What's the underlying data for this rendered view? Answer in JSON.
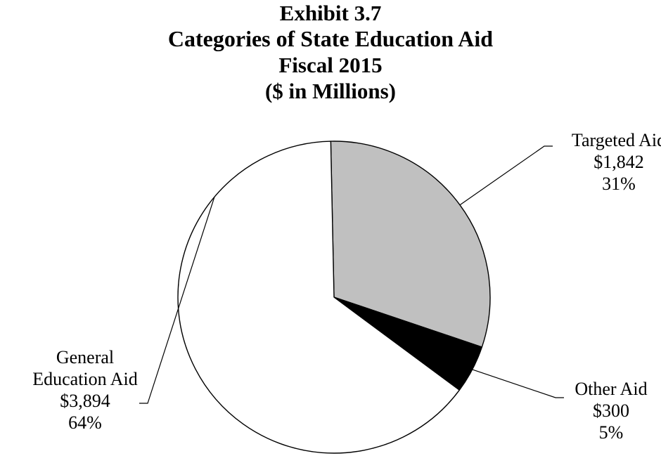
{
  "chart_data": {
    "type": "pie",
    "title": [
      "Exhibit 3.7",
      "Categories of State Education Aid",
      "Fiscal 2015",
      "($ in Millions)"
    ],
    "slices": [
      {
        "name": "Targeted Aid",
        "label_lines": [
          "Targeted Aid"
        ],
        "value": 1842,
        "value_label": "$1,842",
        "percent_label": "31%",
        "color": "#c0c0c0"
      },
      {
        "name": "Other Aid",
        "label_lines": [
          "Other Aid"
        ],
        "value": 300,
        "value_label": "$300",
        "percent_label": "5%",
        "color": "#000000"
      },
      {
        "name": "General Education Aid",
        "label_lines": [
          "General",
          "Education Aid"
        ],
        "value": 3894,
        "value_label": "$3,894",
        "percent_label": "64%",
        "color": "#ffffff"
      }
    ],
    "legend": "none"
  }
}
